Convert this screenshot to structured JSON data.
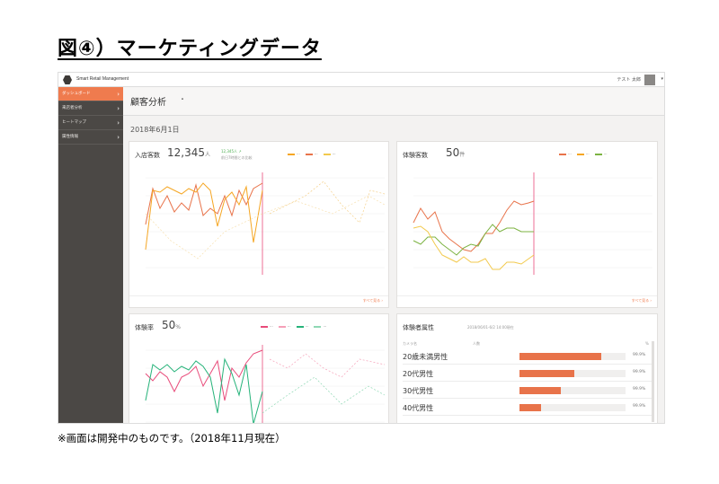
{
  "slide_title": "図④）マーケティングデータ",
  "footnote": "※画面は開発中のものです。（2018年11月現在）",
  "app": {
    "name": "Smart Retail Management",
    "user": "テスト 太郎",
    "page_title": "顧客分析",
    "date": "2018年6月1日"
  },
  "sidebar": {
    "items": [
      {
        "label": "ダッシュボード"
      },
      {
        "label": "来店者分析"
      },
      {
        "label": "ヒートマップ"
      },
      {
        "label": "属性情報"
      }
    ]
  },
  "cards": {
    "visitors": {
      "title": "入店客数",
      "value": "12,345",
      "unit": "人",
      "delta": "12,345人 ↗",
      "delta_note": "前日7時間との比較",
      "see_all": "すべて見る"
    },
    "trial": {
      "title": "体験客数",
      "value": "50",
      "unit": "件",
      "see_all": "すべて見る"
    },
    "rate": {
      "title": "体験率",
      "value": "50",
      "unit": "%"
    },
    "attributes": {
      "title": "体験者属性",
      "period": "2018/06/01-6/2 14:00現在",
      "col_camera": "カメラ名",
      "col_count": "人数",
      "col_pct": "%",
      "rows": [
        {
          "label": "20歳未満男性",
          "pct_text": "99.9%",
          "fill": 0.77
        },
        {
          "label": "20代男性",
          "pct_text": "99.9%",
          "fill": 0.52
        },
        {
          "label": "30代男性",
          "pct_text": "99.9%",
          "fill": 0.39
        },
        {
          "label": "40代男性",
          "pct_text": "99.9%",
          "fill": 0.2
        }
      ]
    }
  },
  "colors": {
    "accent": "#ef7b4e",
    "series_red": "#e8734a",
    "series_orange": "#f5a623",
    "series_yellow": "#f2c94c",
    "series_green": "#7cb342",
    "series_pink": "#e84b7a",
    "series_teal": "#26b37a",
    "now_line": "#e84b7a"
  }
}
